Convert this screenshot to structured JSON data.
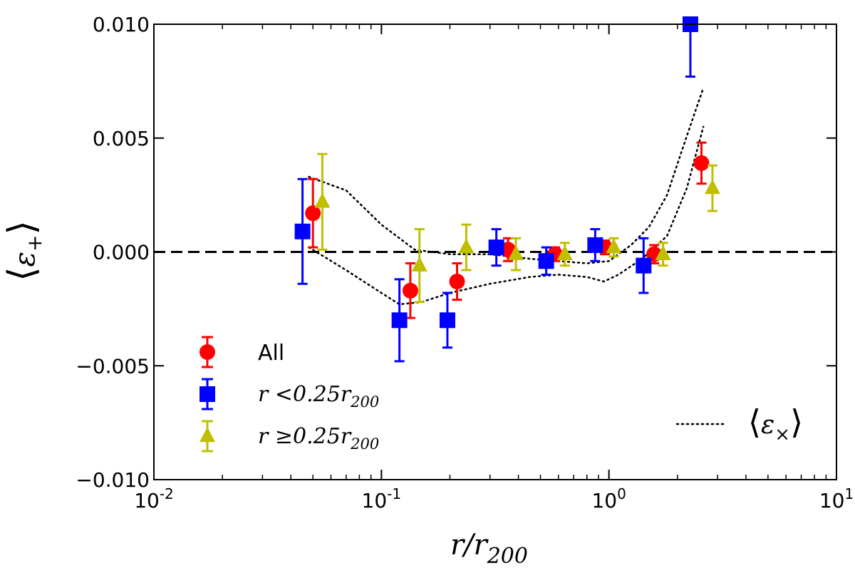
{
  "chart_data": {
    "type": "scatter",
    "xscale": "log",
    "xlim": [
      0.01,
      10
    ],
    "ylim": [
      -0.01,
      0.01
    ],
    "xlabel": "r/r200",
    "ylabel": "⟨ε+⟩",
    "xticks": [
      {
        "value": 0.01,
        "base": "10",
        "exp": "-2"
      },
      {
        "value": 0.1,
        "base": "10",
        "exp": "-1"
      },
      {
        "value": 1,
        "base": "10",
        "exp": "0"
      },
      {
        "value": 10,
        "base": "10",
        "exp": "1"
      }
    ],
    "yticks": [
      {
        "value": 0.01,
        "label": "0.010"
      },
      {
        "value": 0.005,
        "label": "0.005"
      },
      {
        "value": 0.0,
        "label": "0.000"
      },
      {
        "value": -0.005,
        "label": "−0.005"
      },
      {
        "value": -0.01,
        "label": "−0.010"
      }
    ],
    "reference_line": {
      "y": 0.0,
      "style": "dashed"
    },
    "series": [
      {
        "name": "All",
        "marker": "circle",
        "color": "#ff0000",
        "points": [
          {
            "x": 0.05,
            "y": 0.0017,
            "err": 0.0015
          },
          {
            "x": 0.134,
            "y": -0.0017,
            "err": 0.0012
          },
          {
            "x": 0.215,
            "y": -0.0013,
            "err": 0.0008
          },
          {
            "x": 0.36,
            "y": 0.0001,
            "err": 0.0005
          },
          {
            "x": 0.58,
            "y": -0.0001,
            "err": 0.0003
          },
          {
            "x": 0.96,
            "y": 0.0002,
            "err": 0.0003
          },
          {
            "x": 1.58,
            "y": -0.0001,
            "err": 0.0004
          },
          {
            "x": 2.55,
            "y": 0.0039,
            "err": 0.0009
          }
        ]
      },
      {
        "name": "r<0.25r200",
        "marker": "square",
        "color": "#0000ff",
        "points": [
          {
            "x": 0.045,
            "y": 0.0009,
            "err": 0.0023
          },
          {
            "x": 0.12,
            "y": -0.003,
            "err": 0.0018
          },
          {
            "x": 0.195,
            "y": -0.003,
            "err": 0.0012
          },
          {
            "x": 0.32,
            "y": 0.0002,
            "err": 0.0008
          },
          {
            "x": 0.53,
            "y": -0.0004,
            "err": 0.0006
          },
          {
            "x": 0.87,
            "y": 0.0003,
            "err": 0.0007
          },
          {
            "x": 1.42,
            "y": -0.0006,
            "err": 0.0012
          },
          {
            "x": 2.28,
            "y": 0.01,
            "err": 0.0023
          }
        ]
      },
      {
        "name": "r≥0.25r200",
        "marker": "triangle",
        "color": "#bfbf00",
        "points": [
          {
            "x": 0.055,
            "y": 0.0022,
            "err": 0.0021
          },
          {
            "x": 0.147,
            "y": -0.0006,
            "err": 0.0016
          },
          {
            "x": 0.236,
            "y": 0.0002,
            "err": 0.001
          },
          {
            "x": 0.39,
            "y": -0.0001,
            "err": 0.0007
          },
          {
            "x": 0.64,
            "y": -0.0001,
            "err": 0.0005
          },
          {
            "x": 1.05,
            "y": 0.0002,
            "err": 0.0004
          },
          {
            "x": 1.73,
            "y": -0.0001,
            "err": 0.0005
          },
          {
            "x": 2.85,
            "y": 0.0028,
            "err": 0.001
          }
        ]
      }
    ],
    "cross_band": {
      "name": "⟨ε×⟩",
      "style": "dotted",
      "upper": [
        {
          "x": 0.048,
          "y": 0.0033
        },
        {
          "x": 0.07,
          "y": 0.0027
        },
        {
          "x": 0.1,
          "y": 0.0012
        },
        {
          "x": 0.14,
          "y": 0.0001
        },
        {
          "x": 0.2,
          "y": -0.0001
        },
        {
          "x": 0.3,
          "y": -0.0001
        },
        {
          "x": 0.45,
          "y": -0.0003
        },
        {
          "x": 0.6,
          "y": -0.0004
        },
        {
          "x": 0.8,
          "y": -0.0005
        },
        {
          "x": 1.0,
          "y": -0.0004
        },
        {
          "x": 1.25,
          "y": 0.0003
        },
        {
          "x": 1.5,
          "y": 0.0011
        },
        {
          "x": 1.8,
          "y": 0.0025
        },
        {
          "x": 2.1,
          "y": 0.0045
        },
        {
          "x": 2.4,
          "y": 0.0062
        },
        {
          "x": 2.6,
          "y": 0.0072
        }
      ],
      "lower": [
        {
          "x": 0.048,
          "y": 0.0002
        },
        {
          "x": 0.07,
          "y": -0.0008
        },
        {
          "x": 0.1,
          "y": -0.0018
        },
        {
          "x": 0.12,
          "y": -0.0023
        },
        {
          "x": 0.15,
          "y": -0.0022
        },
        {
          "x": 0.2,
          "y": -0.0018
        },
        {
          "x": 0.3,
          "y": -0.0014
        },
        {
          "x": 0.45,
          "y": -0.0011
        },
        {
          "x": 0.6,
          "y": -0.001
        },
        {
          "x": 0.8,
          "y": -0.0011
        },
        {
          "x": 0.95,
          "y": -0.0013
        },
        {
          "x": 1.1,
          "y": -0.001
        },
        {
          "x": 1.4,
          "y": -0.0003
        },
        {
          "x": 1.8,
          "y": 0.0007
        },
        {
          "x": 2.2,
          "y": 0.0028
        },
        {
          "x": 2.6,
          "y": 0.0055
        }
      ]
    },
    "legend": {
      "placement": "lower-left",
      "entries": [
        {
          "label": "All",
          "marker": "circle",
          "color": "#ff0000"
        },
        {
          "label": "r<0.25r200",
          "marker": "square",
          "color": "#0000ff"
        },
        {
          "label": "r≥0.25r200",
          "marker": "triangle",
          "color": "#bfbf00"
        }
      ],
      "cross_entry": {
        "label": "⟨ε×⟩",
        "placement": "lower-right"
      }
    }
  }
}
